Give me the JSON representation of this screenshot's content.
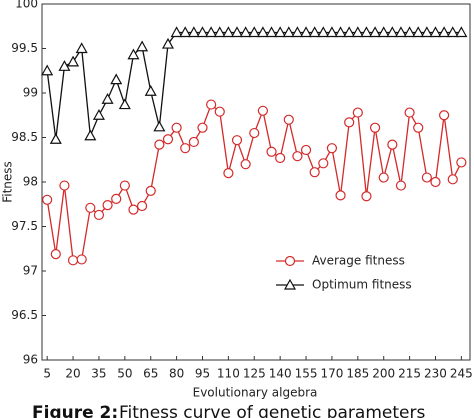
{
  "chart_data": {
    "type": "line",
    "x_label": "Evolutionary algebra",
    "y_label": "Fitness",
    "caption_label": "Figure 2:",
    "caption_text": "Fitness curve of genetic parameters",
    "x": [
      5,
      10,
      15,
      20,
      25,
      30,
      35,
      40,
      45,
      50,
      55,
      60,
      65,
      70,
      75,
      80,
      85,
      90,
      95,
      100,
      105,
      110,
      115,
      120,
      125,
      130,
      135,
      140,
      145,
      150,
      155,
      160,
      165,
      170,
      175,
      180,
      185,
      190,
      195,
      200,
      205,
      210,
      215,
      220,
      225,
      230,
      235,
      240,
      245
    ],
    "series": [
      {
        "name": "Average fitness",
        "color": "#d42a2a",
        "marker": "circle",
        "values": [
          97.8,
          97.19,
          97.96,
          97.12,
          97.13,
          97.71,
          97.63,
          97.74,
          97.81,
          97.96,
          97.69,
          97.73,
          97.9,
          98.42,
          98.48,
          98.61,
          98.38,
          98.45,
          98.61,
          98.87,
          98.79,
          98.1,
          98.47,
          98.2,
          98.55,
          98.8,
          98.34,
          98.27,
          98.7,
          98.29,
          98.36,
          98.11,
          98.21,
          98.38,
          97.85,
          98.67,
          98.78,
          97.84,
          98.61,
          98.05,
          98.42,
          97.96,
          98.78,
          98.61,
          98.05,
          98.0,
          98.75,
          98.03,
          98.22
        ]
      },
      {
        "name": "Optimum fitness",
        "color": "#111111",
        "marker": "triangle",
        "values": [
          99.25,
          98.48,
          99.3,
          99.35,
          99.5,
          98.52,
          98.75,
          98.93,
          99.15,
          98.87,
          99.43,
          99.52,
          99.02,
          98.62,
          99.55,
          99.68,
          99.68,
          99.68,
          99.68,
          99.68,
          99.68,
          99.68,
          99.68,
          99.68,
          99.68,
          99.68,
          99.68,
          99.68,
          99.68,
          99.68,
          99.68,
          99.68,
          99.68,
          99.68,
          99.68,
          99.68,
          99.68,
          99.68,
          99.68,
          99.68,
          99.68,
          99.68,
          99.68,
          99.68,
          99.68,
          99.68,
          99.68,
          99.68,
          99.68
        ]
      }
    ],
    "xlim": [
      2,
      250
    ],
    "ylim": [
      96,
      100
    ],
    "xticks": [
      5,
      20,
      35,
      50,
      65,
      80,
      95,
      110,
      125,
      140,
      155,
      170,
      185,
      200,
      215,
      230,
      245
    ],
    "yticks": [
      96,
      96.5,
      97,
      97.5,
      98,
      98.5,
      99,
      99.5,
      100
    ],
    "legend": "center-right"
  }
}
